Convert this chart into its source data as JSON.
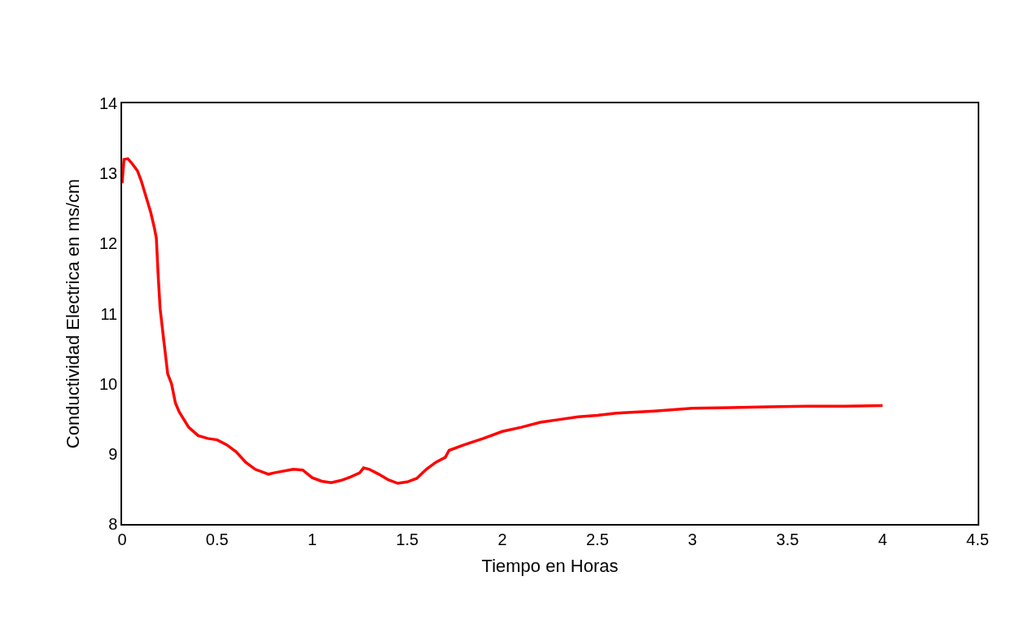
{
  "chart_data": {
    "type": "line",
    "xlabel": "Tiempo en Horas",
    "ylabel": "Conductividad Electrica en ms/cm",
    "x": [
      0,
      0.01,
      0.03,
      0.05,
      0.08,
      0.1,
      0.13,
      0.15,
      0.17,
      0.18,
      0.19,
      0.2,
      0.22,
      0.24,
      0.26,
      0.28,
      0.3,
      0.35,
      0.4,
      0.45,
      0.5,
      0.55,
      0.6,
      0.65,
      0.7,
      0.77,
      0.8,
      0.9,
      0.95,
      1.0,
      1.05,
      1.1,
      1.15,
      1.2,
      1.25,
      1.27,
      1.3,
      1.35,
      1.4,
      1.45,
      1.5,
      1.55,
      1.6,
      1.65,
      1.7,
      1.72,
      1.8,
      1.9,
      2.0,
      2.1,
      2.2,
      2.3,
      2.4,
      2.5,
      2.6,
      2.8,
      3.0,
      3.2,
      3.4,
      3.6,
      3.8,
      4.0
    ],
    "series": [
      {
        "color": "#ff0000",
        "values": [
          12.86,
          13.2,
          13.21,
          13.15,
          13.04,
          12.9,
          12.63,
          12.45,
          12.22,
          12.08,
          11.53,
          11.07,
          10.6,
          10.14,
          10.0,
          9.73,
          9.6,
          9.38,
          9.26,
          9.22,
          9.2,
          9.13,
          9.03,
          8.88,
          8.78,
          8.71,
          8.73,
          8.78,
          8.77,
          8.66,
          8.61,
          8.59,
          8.62,
          8.67,
          8.73,
          8.8,
          8.78,
          8.71,
          8.63,
          8.58,
          8.6,
          8.65,
          8.78,
          8.88,
          8.95,
          9.05,
          9.13,
          9.22,
          9.32,
          9.38,
          9.45,
          9.49,
          9.53,
          9.55,
          9.58,
          9.61,
          9.65,
          9.66,
          9.67,
          9.68,
          9.68,
          9.69
        ]
      }
    ],
    "xlim": [
      0,
      4.5
    ],
    "xticks": [
      0,
      0.5,
      1,
      1.5,
      2,
      2.5,
      3,
      3.5,
      4,
      4.5
    ],
    "ylim": [
      8,
      14
    ],
    "yticks": [
      8,
      9,
      10,
      11,
      12,
      13,
      14
    ],
    "marker": "none",
    "line_style": "solid"
  }
}
